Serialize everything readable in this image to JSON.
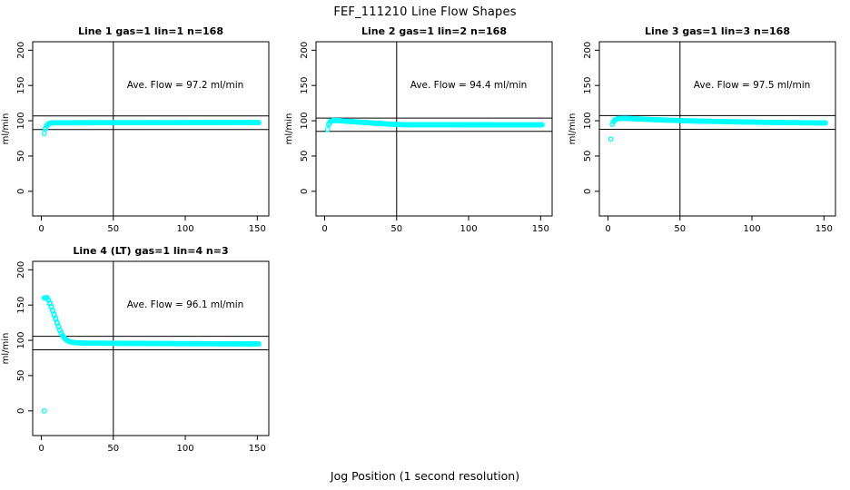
{
  "figure": {
    "title": "FEF_111210  Line Flow Shapes",
    "xlabel": "Jog Position (1 second resolution)",
    "background": "#ffffff",
    "axis_color": "#000000"
  },
  "chart_data": [
    {
      "type": "scatter",
      "title": "Line 1 gas=1 lin=1 n=168",
      "annotation": "Ave. Flow =  97.2  ml/min",
      "annotation_pos": {
        "x": 100,
        "y": 150
      },
      "avg_flow": 97.2,
      "n": 168,
      "ylabel": "ml/min",
      "xticks": [
        0,
        50,
        100,
        150
      ],
      "yticks": [
        0,
        50,
        100,
        150,
        200
      ],
      "xlim": [
        -6,
        158
      ],
      "ylim": [
        -35,
        212
      ],
      "hlines": [
        106.9,
        87.5
      ],
      "vline": 50,
      "point_color": "#00ffff",
      "sample_step": 0.8,
      "keypoints": [
        [
          2,
          82
        ],
        [
          3,
          90
        ],
        [
          4,
          93.5
        ],
        [
          5,
          95.6
        ],
        [
          6,
          96.6
        ],
        [
          8,
          97.1
        ],
        [
          30,
          97.2
        ],
        [
          80,
          97.3
        ],
        [
          151,
          97.4
        ]
      ],
      "extra_points": []
    },
    {
      "type": "scatter",
      "title": "Line 2 gas=1 lin=2 n=168",
      "annotation": "Ave. Flow =  94.4  ml/min",
      "annotation_pos": {
        "x": 100,
        "y": 150
      },
      "avg_flow": 94.4,
      "n": 168,
      "ylabel": "ml/min",
      "xticks": [
        0,
        50,
        100,
        150
      ],
      "yticks": [
        0,
        50,
        100,
        150,
        200
      ],
      "xlim": [
        -6,
        158
      ],
      "ylim": [
        -35,
        212
      ],
      "hlines": [
        103.8,
        85.0
      ],
      "vline": 50,
      "point_color": "#00ffff",
      "sample_step": 0.8,
      "keypoints": [
        [
          2,
          87.5
        ],
        [
          3,
          96
        ],
        [
          4,
          99.2
        ],
        [
          6,
          100.4
        ],
        [
          10,
          100.1
        ],
        [
          20,
          98.6
        ],
        [
          30,
          97.2
        ],
        [
          45,
          95.2
        ],
        [
          55,
          94.4
        ],
        [
          151,
          94.2
        ]
      ],
      "extra_points": []
    },
    {
      "type": "scatter",
      "title": "Line 3 gas=1 lin=3 n=168",
      "annotation": "Ave. Flow =  97.5  ml/min",
      "annotation_pos": {
        "x": 100,
        "y": 150
      },
      "avg_flow": 97.5,
      "n": 168,
      "ylabel": "ml/min",
      "xticks": [
        0,
        50,
        100,
        150
      ],
      "yticks": [
        0,
        50,
        100,
        150,
        200
      ],
      "xlim": [
        -6,
        158
      ],
      "ylim": [
        -35,
        212
      ],
      "hlines": [
        107.3,
        87.8
      ],
      "vline": 50,
      "point_color": "#00ffff",
      "sample_step": 0.8,
      "keypoints": [
        [
          3,
          95
        ],
        [
          4,
          99.5
        ],
        [
          5,
          101.5
        ],
        [
          7,
          103
        ],
        [
          12,
          103.4
        ],
        [
          20,
          102.6
        ],
        [
          40,
          100.9
        ],
        [
          60,
          99.6
        ],
        [
          90,
          98.4
        ],
        [
          120,
          97.4
        ],
        [
          151,
          96.9
        ]
      ],
      "extra_points": [
        [
          2,
          74
        ]
      ]
    },
    {
      "type": "scatter",
      "title": "Line 4 (LT) gas=1 lin=4 n=3",
      "annotation": "Ave. Flow =  96.1  ml/min",
      "annotation_pos": {
        "x": 100,
        "y": 150
      },
      "avg_flow": 96.1,
      "n": 3,
      "ylabel": "ml/min",
      "xticks": [
        0,
        50,
        100,
        150
      ],
      "yticks": [
        0,
        50,
        100,
        150,
        200
      ],
      "xlim": [
        -6,
        158
      ],
      "ylim": [
        -35,
        212
      ],
      "hlines": [
        105.7,
        86.5
      ],
      "vline": 50,
      "point_color": "#00ffff",
      "sample_step": 0.8,
      "keypoints": [
        [
          2,
          160
        ],
        [
          4,
          160.5
        ],
        [
          5,
          157
        ],
        [
          6,
          152
        ],
        [
          7,
          147
        ],
        [
          8,
          141.5
        ],
        [
          9,
          136
        ],
        [
          10,
          130
        ],
        [
          11,
          124.5
        ],
        [
          12,
          119
        ],
        [
          13,
          114
        ],
        [
          14,
          109.5
        ],
        [
          15,
          106
        ],
        [
          16,
          103.3
        ],
        [
          17,
          101.3
        ],
        [
          18,
          99.8
        ],
        [
          19,
          98.7
        ],
        [
          20,
          98
        ],
        [
          22,
          97.1
        ],
        [
          25,
          96.5
        ],
        [
          30,
          96.1
        ],
        [
          50,
          95.8
        ],
        [
          100,
          95.3
        ],
        [
          151,
          95
        ]
      ],
      "extra_points": [
        [
          2,
          0
        ]
      ]
    }
  ]
}
